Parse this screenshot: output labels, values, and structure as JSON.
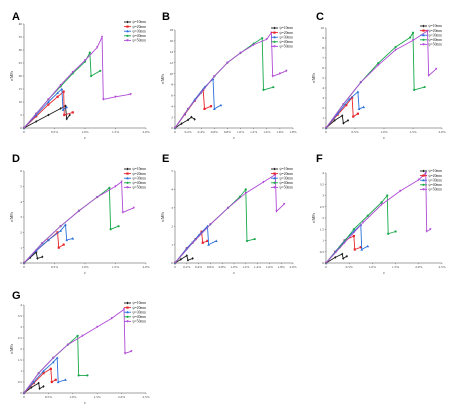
{
  "colors": {
    "s10": "#1a1a1a",
    "s20": "#e8242a",
    "s30": "#2a6fdb",
    "s40": "#18a84a",
    "s50": "#b04ad6"
  },
  "chart_data": [
    {
      "type": "line",
      "panel": "A",
      "xlabel": "ε",
      "ylabel": "σ/MPa",
      "xlim": [
        0,
        2.0
      ],
      "ylim": [
        0,
        40
      ],
      "xticks": [
        "0",
        "0.5%",
        "1.0%",
        "1.5%",
        "2.0%"
      ],
      "yticks": [
        "0",
        "5",
        "10",
        "15",
        "20",
        "25",
        "30",
        "35",
        "40"
      ],
      "legend_position": "top-right",
      "series": [
        {
          "name": "ψ=10mm",
          "x": [
            0,
            0.2,
            0.4,
            0.6,
            0.68,
            0.7,
            0.75
          ],
          "y": [
            0,
            2.5,
            5,
            7.5,
            8.5,
            3.5,
            5
          ]
        },
        {
          "name": "ψ=20mm",
          "x": [
            0,
            0.2,
            0.4,
            0.55,
            0.65,
            0.66,
            0.8
          ],
          "y": [
            0,
            4.5,
            9,
            12,
            14,
            5,
            6
          ]
        },
        {
          "name": "ψ=30mm",
          "x": [
            0,
            0.2,
            0.4,
            0.55,
            0.62,
            0.64,
            0.7
          ],
          "y": [
            0,
            5,
            10,
            13.5,
            15,
            7,
            8
          ]
        },
        {
          "name": "ψ=40mm",
          "x": [
            0,
            0.2,
            0.4,
            0.6,
            0.8,
            1.0,
            1.08,
            1.1,
            1.25
          ],
          "y": [
            0,
            5.5,
            11,
            16,
            21,
            25.5,
            29,
            20,
            22
          ]
        },
        {
          "name": "ψ=50mm",
          "x": [
            0,
            0.2,
            0.4,
            0.6,
            0.8,
            1.0,
            1.2,
            1.28,
            1.3,
            1.5,
            1.75
          ],
          "y": [
            0,
            5.5,
            11,
            16.5,
            21.5,
            26,
            31,
            35,
            11,
            12,
            13
          ]
        }
      ]
    },
    {
      "type": "line",
      "panel": "B",
      "xlabel": "ε",
      "ylabel": "σ/MPa",
      "xlim": [
        0,
        1.8
      ],
      "ylim": [
        0,
        18
      ],
      "xticks": [
        "0",
        "0.2%",
        "0.4%",
        "0.6%",
        "0.8%",
        "1.0%",
        "1.2%",
        "1.4%",
        "1.6%",
        "1.8%"
      ],
      "yticks": [
        "0",
        "2",
        "4",
        "6",
        "8",
        "10",
        "12",
        "14",
        "16",
        "18"
      ],
      "legend_position": "top-right",
      "series": [
        {
          "name": "ψ=10mm",
          "x": [
            0,
            0.1,
            0.2,
            0.25,
            0.3
          ],
          "y": [
            0,
            0.8,
            1.5,
            2,
            1.6
          ]
        },
        {
          "name": "ψ=20mm",
          "x": [
            0,
            0.15,
            0.3,
            0.43,
            0.45,
            0.55
          ],
          "y": [
            0,
            2.5,
            5,
            7,
            3.5,
            4
          ]
        },
        {
          "name": "ψ=30mm",
          "x": [
            0,
            0.15,
            0.3,
            0.45,
            0.58,
            0.6,
            0.7
          ],
          "y": [
            0,
            2.6,
            5.2,
            7.5,
            9,
            3.5,
            4.2
          ]
        },
        {
          "name": "ψ=40mm",
          "x": [
            0,
            0.2,
            0.4,
            0.6,
            0.8,
            1.0,
            1.2,
            1.33,
            1.35,
            1.5
          ],
          "y": [
            0,
            3.5,
            6.5,
            9.5,
            12,
            13.8,
            15.5,
            16.5,
            7,
            7.5
          ]
        },
        {
          "name": "ψ=50mm",
          "x": [
            0,
            0.2,
            0.4,
            0.6,
            0.8,
            1.0,
            1.2,
            1.4,
            1.47,
            1.49,
            1.6,
            1.7
          ],
          "y": [
            0,
            3.5,
            6.5,
            9.5,
            12,
            13.8,
            15.3,
            16.3,
            17.5,
            9.5,
            10,
            10.5
          ]
        }
      ]
    },
    {
      "type": "line",
      "panel": "C",
      "xlabel": "ε",
      "ylabel": "σ/MPa",
      "xlim": [
        0,
        2.0
      ],
      "ylim": [
        0,
        10.5
      ],
      "xticks": [
        "0",
        "0.5%",
        "1.0%",
        "1.5%",
        "2.0%"
      ],
      "yticks": [
        "0",
        "1",
        "2",
        "3",
        "4",
        "5",
        "6",
        "7",
        "8",
        "9",
        "10"
      ],
      "legend_position": "top-right",
      "series": [
        {
          "name": "ψ=10mm",
          "x": [
            0,
            0.15,
            0.28,
            0.3,
            0.38
          ],
          "y": [
            0,
            0.8,
            1.3,
            0.5,
            0.8
          ]
        },
        {
          "name": "ψ=20mm",
          "x": [
            0,
            0.2,
            0.35,
            0.45,
            0.47,
            0.55
          ],
          "y": [
            0,
            1.4,
            2.4,
            3.2,
            1.2,
            1.5
          ]
        },
        {
          "name": "ψ=30mm",
          "x": [
            0,
            0.2,
            0.4,
            0.55,
            0.57,
            0.65
          ],
          "y": [
            0,
            1.5,
            3,
            3.8,
            2,
            2.2
          ]
        },
        {
          "name": "ψ=40mm",
          "x": [
            0,
            0.3,
            0.6,
            0.9,
            1.2,
            1.45,
            1.5,
            1.52,
            1.7
          ],
          "y": [
            0,
            2.5,
            4.8,
            6.8,
            8.5,
            9.5,
            10,
            4,
            4.3
          ]
        },
        {
          "name": "ψ=50mm",
          "x": [
            0,
            0.3,
            0.6,
            0.9,
            1.2,
            1.5,
            1.75,
            1.77,
            1.9
          ],
          "y": [
            0,
            2.5,
            4.8,
            6.6,
            8.2,
            9.2,
            10.2,
            5.5,
            6.2
          ]
        }
      ]
    },
    {
      "type": "line",
      "panel": "D",
      "xlabel": "ε",
      "ylabel": "σ/MPa",
      "xlim": [
        0,
        2.0
      ],
      "ylim": [
        0,
        6
      ],
      "xticks": [
        "0",
        "0.5%",
        "1.0%",
        "1.5%",
        "2.0%"
      ],
      "yticks": [
        "0",
        "1",
        "2",
        "3",
        "4",
        "5",
        "6"
      ],
      "legend_position": "top-right",
      "series": [
        {
          "name": "ψ=10mm",
          "x": [
            0,
            0.1,
            0.2,
            0.22,
            0.3
          ],
          "y": [
            0,
            0.35,
            0.7,
            0.3,
            0.4
          ]
        },
        {
          "name": "ψ=20mm",
          "x": [
            0,
            0.2,
            0.4,
            0.55,
            0.57,
            0.65
          ],
          "y": [
            0,
            0.8,
            1.5,
            2.0,
            1.0,
            1.2
          ]
        },
        {
          "name": "ψ=30mm",
          "x": [
            0,
            0.2,
            0.4,
            0.6,
            0.68,
            0.7,
            0.8
          ],
          "y": [
            0,
            0.8,
            1.5,
            2.1,
            2.5,
            1.5,
            1.6
          ]
        },
        {
          "name": "ψ=40mm",
          "x": [
            0,
            0.3,
            0.6,
            0.9,
            1.2,
            1.4,
            1.42,
            1.55
          ],
          "y": [
            0,
            1.3,
            2.4,
            3.4,
            4.3,
            4.9,
            2.2,
            2.4
          ]
        },
        {
          "name": "ψ=50mm",
          "x": [
            0,
            0.3,
            0.6,
            0.9,
            1.2,
            1.5,
            1.6,
            1.62,
            1.8
          ],
          "y": [
            0,
            1.3,
            2.4,
            3.4,
            4.3,
            5.0,
            5.3,
            3.3,
            3.6
          ]
        }
      ]
    },
    {
      "type": "line",
      "panel": "E",
      "xlabel": "ε",
      "ylabel": "σ/MPa",
      "xlim": [
        0,
        2.0
      ],
      "ylim": [
        0,
        5
      ],
      "xticks": [
        "0",
        "0.2%",
        "0.4%",
        "0.6%",
        "0.8%",
        "1.0%",
        "1.2%",
        "1.4%",
        "1.6%",
        "1.8%",
        "2.0%"
      ],
      "yticks": [
        "0",
        "1",
        "2",
        "3",
        "4",
        "5"
      ],
      "legend_position": "top-right",
      "series": [
        {
          "name": "ψ=10mm",
          "x": [
            0,
            0.1,
            0.2,
            0.22,
            0.3
          ],
          "y": [
            0,
            0.2,
            0.4,
            0.15,
            0.25
          ]
        },
        {
          "name": "ψ=20mm",
          "x": [
            0,
            0.2,
            0.35,
            0.45,
            0.47,
            0.55
          ],
          "y": [
            0,
            0.8,
            1.3,
            1.7,
            1.1,
            1.2
          ]
        },
        {
          "name": "ψ=30mm",
          "x": [
            0,
            0.2,
            0.4,
            0.55,
            0.57,
            0.7
          ],
          "y": [
            0,
            0.8,
            1.5,
            2.0,
            1.0,
            1.2
          ]
        },
        {
          "name": "ψ=40mm",
          "x": [
            0,
            0.3,
            0.6,
            0.9,
            1.1,
            1.2,
            1.22,
            1.35
          ],
          "y": [
            0,
            1.1,
            2.1,
            3.0,
            3.6,
            4.0,
            1.2,
            1.3
          ]
        },
        {
          "name": "ψ=50mm",
          "x": [
            0,
            0.3,
            0.6,
            0.9,
            1.2,
            1.5,
            1.7,
            1.72,
            1.85
          ],
          "y": [
            0,
            1.1,
            2.1,
            3.0,
            3.8,
            4.4,
            4.8,
            2.8,
            3.2
          ]
        }
      ]
    },
    {
      "type": "line",
      "panel": "F",
      "xlabel": "ε",
      "ylabel": "σ/MPa",
      "xlim": [
        0,
        2.5
      ],
      "ylim": [
        0,
        4
      ],
      "xticks": [
        "0",
        "0.5%",
        "1.0%",
        "1.5%",
        "2.0%",
        "2.5%"
      ],
      "yticks": [
        "0",
        "0.5",
        "1",
        "1.5",
        "2",
        "2.5",
        "3",
        "3.5",
        "4"
      ],
      "legend_position": "top-right",
      "series": [
        {
          "name": "ψ=10mm",
          "x": [
            0,
            0.2,
            0.35,
            0.37,
            0.45
          ],
          "y": [
            0,
            0.25,
            0.4,
            0.2,
            0.3
          ]
        },
        {
          "name": "ψ=20mm",
          "x": [
            0,
            0.2,
            0.4,
            0.6,
            0.62,
            0.75
          ],
          "y": [
            0,
            0.5,
            1.0,
            1.2,
            0.6,
            0.7
          ]
        },
        {
          "name": "ψ=30mm",
          "x": [
            0,
            0.2,
            0.4,
            0.6,
            0.75,
            0.77,
            0.9
          ],
          "y": [
            0,
            0.5,
            1.0,
            1.4,
            1.7,
            0.6,
            0.75
          ]
        },
        {
          "name": "ψ=40mm",
          "x": [
            0,
            0.3,
            0.6,
            0.9,
            1.2,
            1.32,
            1.34,
            1.5
          ],
          "y": [
            0,
            0.7,
            1.5,
            2.1,
            2.7,
            3.0,
            1.3,
            1.4
          ]
        },
        {
          "name": "ψ=50mm",
          "x": [
            0,
            0.4,
            0.8,
            1.2,
            1.6,
            2.0,
            2.15,
            2.17,
            2.25
          ],
          "y": [
            0,
            0.9,
            1.8,
            2.6,
            3.2,
            3.7,
            4.0,
            1.4,
            1.5
          ]
        }
      ]
    },
    {
      "type": "line",
      "panel": "G",
      "xlabel": "ε",
      "ylabel": "σ/MPa",
      "xlim": [
        0,
        2.5
      ],
      "ylim": [
        0,
        4
      ],
      "xticks": [
        "0",
        "0.5%",
        "1.0%",
        "1.5%",
        "2.0%",
        "2.5%"
      ],
      "yticks": [
        "0",
        "0.5",
        "1",
        "1.5",
        "2",
        "2.5",
        "3",
        "3.5",
        "4"
      ],
      "legend_position": "top-right",
      "series": [
        {
          "name": "ψ=10mm",
          "x": [
            0,
            0.15,
            0.3,
            0.32,
            0.4
          ],
          "y": [
            0,
            0.25,
            0.45,
            0.2,
            0.3
          ]
        },
        {
          "name": "ψ=20mm",
          "x": [
            0,
            0.2,
            0.4,
            0.55,
            0.57,
            0.65
          ],
          "y": [
            0,
            0.45,
            0.9,
            1.1,
            0.5,
            0.6
          ]
        },
        {
          "name": "ψ=30mm",
          "x": [
            0,
            0.2,
            0.4,
            0.6,
            0.68,
            0.7,
            0.85
          ],
          "y": [
            0,
            0.5,
            1.0,
            1.4,
            1.6,
            0.5,
            0.6
          ]
        },
        {
          "name": "ψ=40mm",
          "x": [
            0,
            0.3,
            0.6,
            0.9,
            1.1,
            1.12,
            1.3
          ],
          "y": [
            0,
            0.9,
            1.6,
            2.2,
            2.6,
            0.8,
            0.8
          ]
        },
        {
          "name": "ψ=50mm",
          "x": [
            0,
            0.3,
            0.6,
            0.9,
            1.2,
            1.5,
            1.8,
            2.05,
            2.07,
            2.2
          ],
          "y": [
            0,
            0.9,
            1.6,
            2.2,
            2.6,
            3.0,
            3.4,
            3.8,
            1.8,
            1.9
          ]
        }
      ]
    }
  ]
}
